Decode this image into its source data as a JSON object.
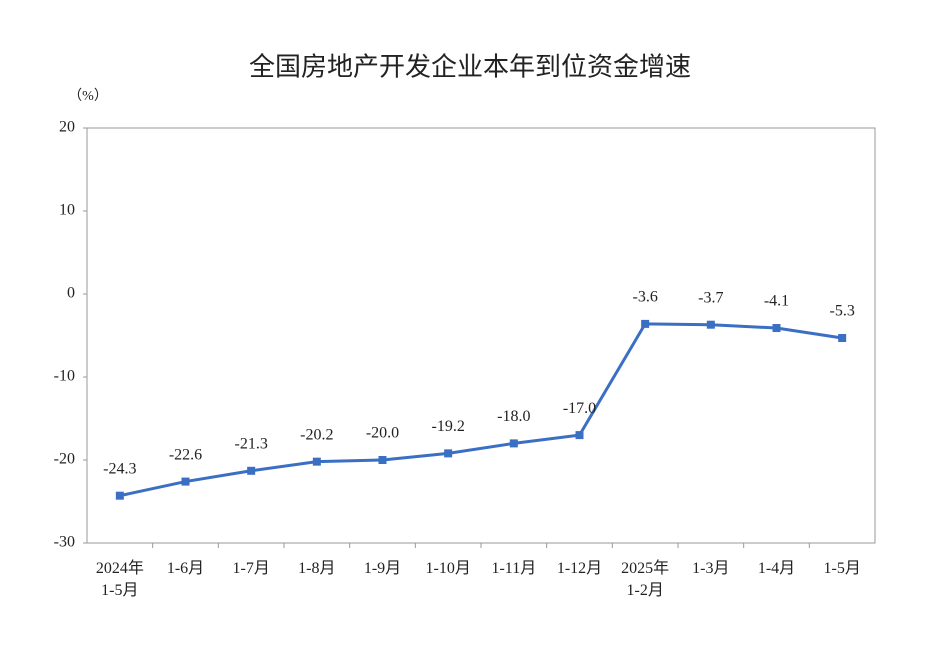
{
  "chart_data": {
    "type": "line",
    "title": "全国房地产开发企业本年到位资金增速",
    "y_label": "（%）",
    "categories": [
      "2024年\n1-5月",
      "1-6月",
      "1-7月",
      "1-8月",
      "1-9月",
      "1-10月",
      "1-11月",
      "1-12月",
      "2025年\n1-2月",
      "1-3月",
      "1-4月",
      "1-5月"
    ],
    "series": [
      {
        "color": "#3a6fc4",
        "values": [
          -24.3,
          -22.6,
          -21.3,
          -20.2,
          -20.0,
          -19.2,
          -18.0,
          -17.0,
          -3.6,
          -3.7,
          -4.1,
          -5.3
        ],
        "value_labels": [
          "-24.3",
          "-22.6",
          "-21.3",
          "-20.2",
          "-20.0",
          "-19.2",
          "-18.0",
          "-17.0",
          "-3.6",
          "-3.7",
          "-4.1",
          "-5.3"
        ]
      }
    ],
    "ylim": [
      -30,
      20
    ],
    "yticks": [
      -30,
      -20,
      -10,
      0,
      10,
      20
    ]
  }
}
